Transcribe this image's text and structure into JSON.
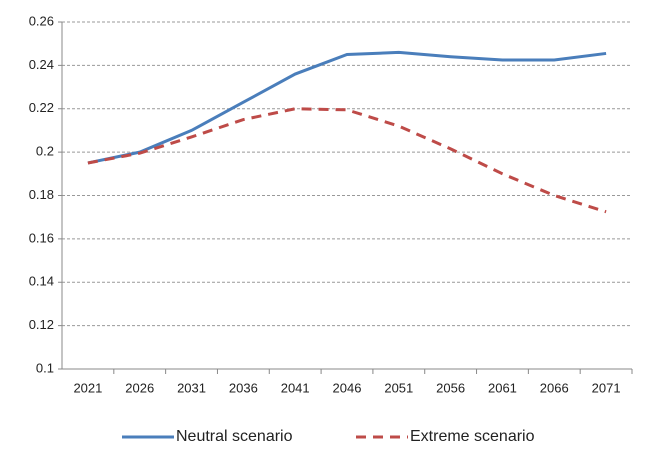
{
  "chart_data": {
    "type": "line",
    "categories": [
      "2021",
      "2026",
      "2031",
      "2036",
      "2041",
      "2046",
      "2051",
      "2056",
      "2061",
      "2066",
      "2071"
    ],
    "series": [
      {
        "name": "Neutral scenario",
        "color": "#4a7ebb",
        "dash": false,
        "values": [
          0.195,
          0.2,
          0.21,
          0.223,
          0.236,
          0.245,
          0.246,
          0.244,
          0.2425,
          0.2425,
          0.2455
        ]
      },
      {
        "name": "Extreme scenario",
        "color": "#be4b48",
        "dash": true,
        "values": [
          0.195,
          0.1995,
          0.207,
          0.215,
          0.22,
          0.2195,
          0.212,
          0.2015,
          0.19,
          0.18,
          0.1725
        ]
      }
    ],
    "ylim": [
      0.1,
      0.26
    ],
    "yticks": [
      0.1,
      0.12,
      0.14,
      0.16,
      0.18,
      0.2,
      0.22,
      0.24,
      0.26
    ],
    "grid": true,
    "legend": "bottom"
  }
}
